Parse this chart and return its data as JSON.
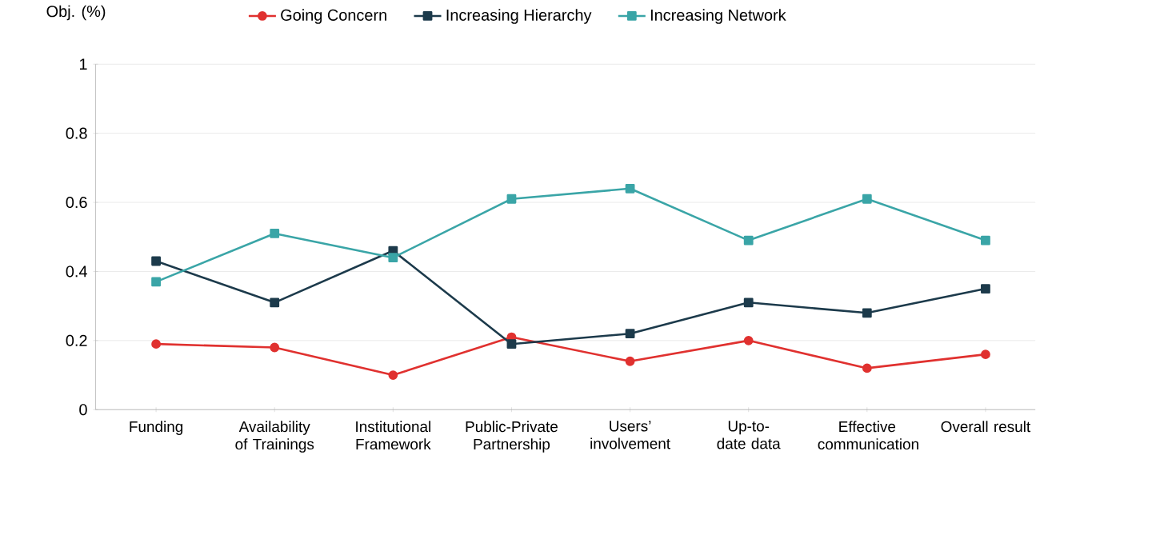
{
  "chart_data": {
    "type": "line",
    "ylabel": "Obj. (%)",
    "categories": [
      "Funding",
      "Availability of Trainings",
      "Institutional Framework",
      "Public-Private Partnership",
      "Users’ involvement",
      "Up-to-date data",
      "Effective communication",
      "Overall result"
    ],
    "series": [
      {
        "name": "Going Concern",
        "color": "#e0312f",
        "marker": "circle",
        "values": [
          0.19,
          0.18,
          0.1,
          0.21,
          0.14,
          0.2,
          0.12,
          0.16
        ]
      },
      {
        "name": "Increasing Hierarchy",
        "color": "#1c3a4b",
        "marker": "square",
        "values": [
          0.43,
          0.31,
          0.46,
          0.19,
          0.22,
          0.31,
          0.28,
          0.35
        ]
      },
      {
        "name": "Increasing Network",
        "color": "#3aa5a7",
        "marker": "square",
        "values": [
          0.37,
          0.51,
          0.44,
          0.61,
          0.64,
          0.49,
          0.61,
          0.49
        ]
      }
    ],
    "ylim": [
      0,
      1
    ],
    "yticks": [
      0,
      0.2,
      0.4,
      0.6,
      0.8,
      1
    ],
    "grid": "y",
    "legend": "top",
    "line_style": "solid"
  }
}
